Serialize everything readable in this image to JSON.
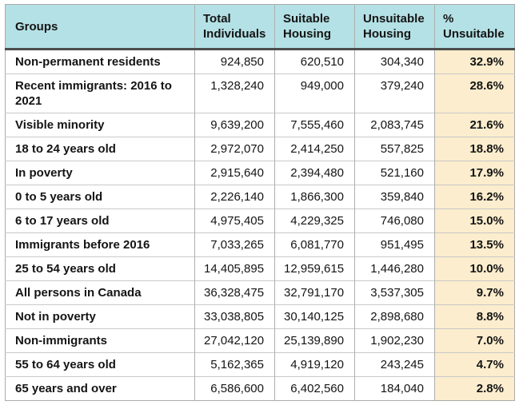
{
  "colors": {
    "header_bg": "#b4e1e5",
    "highlight_bg": "#fbedcd",
    "header_divider": "#4d4d4d",
    "grid_vertical": "#aeaeae",
    "grid_horizontal": "#c9c9c9",
    "outer_border": "#ababab",
    "text": "#141414"
  },
  "table": {
    "columns": [
      {
        "key": "group",
        "label": "Groups"
      },
      {
        "key": "total",
        "label": "Total Individuals"
      },
      {
        "key": "suitable",
        "label": "Suitable Housing"
      },
      {
        "key": "unsuitable",
        "label": "Unsuitable Housing"
      },
      {
        "key": "pct",
        "label": "% Unsuitable"
      }
    ],
    "rows": [
      {
        "group": "Non-permanent residents",
        "total": "924,850",
        "suitable": "620,510",
        "unsuitable": "304,340",
        "pct": "32.9%"
      },
      {
        "group": "Recent immigrants: 2016 to 2021",
        "total": "1,328,240",
        "suitable": "949,000",
        "unsuitable": "379,240",
        "pct": "28.6%"
      },
      {
        "group": "Visible minority",
        "total": "9,639,200",
        "suitable": "7,555,460",
        "unsuitable": "2,083,745",
        "pct": "21.6%"
      },
      {
        "group": "18 to 24 years old",
        "total": "2,972,070",
        "suitable": "2,414,250",
        "unsuitable": "557,825",
        "pct": "18.8%"
      },
      {
        "group": "In poverty",
        "total": "2,915,640",
        "suitable": "2,394,480",
        "unsuitable": "521,160",
        "pct": "17.9%"
      },
      {
        "group": "0 to 5 years old",
        "total": "2,226,140",
        "suitable": "1,866,300",
        "unsuitable": "359,840",
        "pct": "16.2%"
      },
      {
        "group": "6 to 17 years old",
        "total": "4,975,405",
        "suitable": "4,229,325",
        "unsuitable": "746,080",
        "pct": "15.0%"
      },
      {
        "group": "Immigrants before 2016",
        "total": "7,033,265",
        "suitable": "6,081,770",
        "unsuitable": "951,495",
        "pct": "13.5%"
      },
      {
        "group": "25 to 54 years old",
        "total": "14,405,895",
        "suitable": "12,959,615",
        "unsuitable": "1,446,280",
        "pct": "10.0%"
      },
      {
        "group": "All persons in Canada",
        "total": "36,328,475",
        "suitable": "32,791,170",
        "unsuitable": "3,537,305",
        "pct": "9.7%"
      },
      {
        "group": "Not in poverty",
        "total": "33,038,805",
        "suitable": "30,140,125",
        "unsuitable": "2,898,680",
        "pct": "8.8%"
      },
      {
        "group": "Non-immigrants",
        "total": "27,042,120",
        "suitable": "25,139,890",
        "unsuitable": "1,902,230",
        "pct": "7.0%"
      },
      {
        "group": "55 to 64 years old",
        "total": "5,162,365",
        "suitable": "4,919,120",
        "unsuitable": "243,245",
        "pct": "4.7%"
      },
      {
        "group": "65 years and over",
        "total": "6,586,600",
        "suitable": "6,402,560",
        "unsuitable": "184,040",
        "pct": "2.8%"
      }
    ]
  }
}
